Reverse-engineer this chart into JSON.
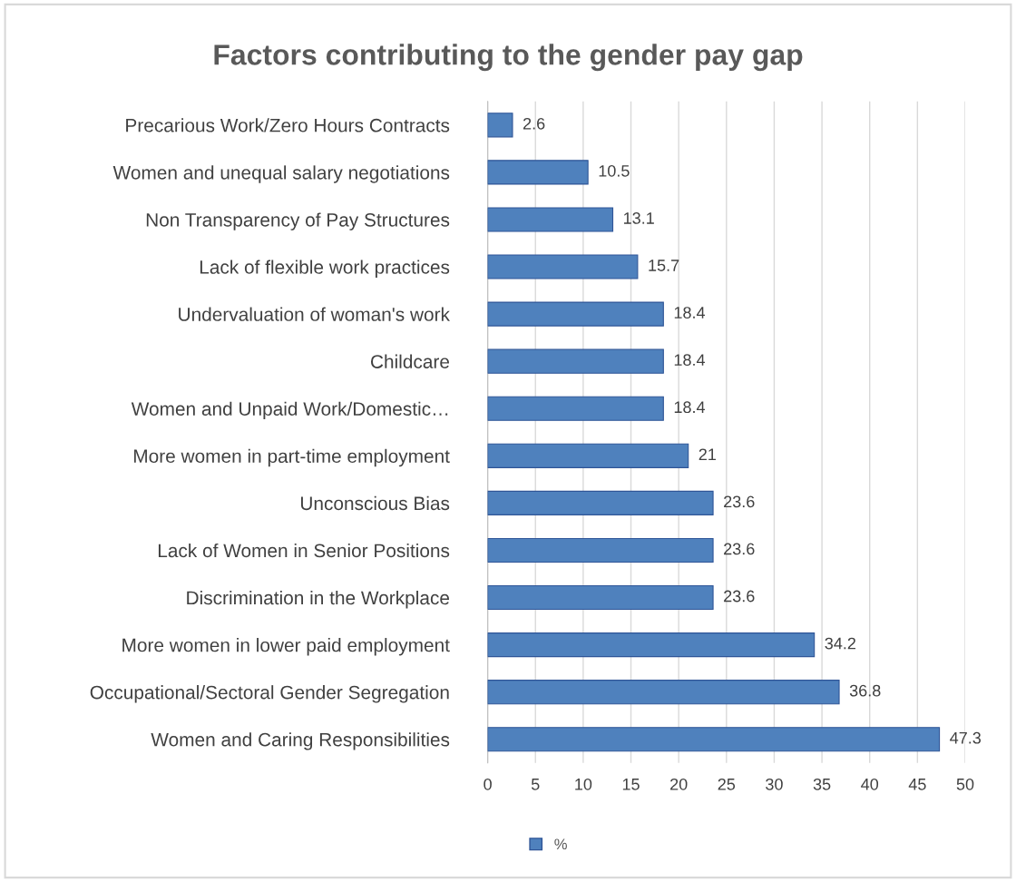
{
  "chart_data": {
    "type": "bar",
    "orientation": "horizontal",
    "title": "Factors contributing to the gender pay gap",
    "categories": [
      "Precarious Work/Zero Hours Contracts",
      "Women and unequal salary negotiations",
      "Non Transparency of Pay Structures",
      "Lack of flexible work practices",
      "Undervaluation of woman's work",
      "Childcare",
      "Women and Unpaid Work/Domestic…",
      "More women in part-time employment",
      "Unconscious Bias",
      "Lack of Women in Senior Positions",
      "Discrimination in the Workplace",
      "More women in lower paid employment",
      "Occupational/Sectoral Gender Segregation",
      "Women and Caring Responsibilities"
    ],
    "series": [
      {
        "name": "%",
        "color": "#4f81bd",
        "values": [
          2.6,
          10.5,
          13.1,
          15.7,
          18.4,
          18.4,
          18.4,
          21,
          23.6,
          23.6,
          23.6,
          34.2,
          36.8,
          47.3
        ]
      }
    ],
    "xlim": [
      0,
      50
    ],
    "xticks": [
      0,
      5,
      10,
      15,
      20,
      25,
      30,
      35,
      40,
      45,
      50
    ],
    "grid": "x",
    "legend": "bottom",
    "data_labels": true
  }
}
